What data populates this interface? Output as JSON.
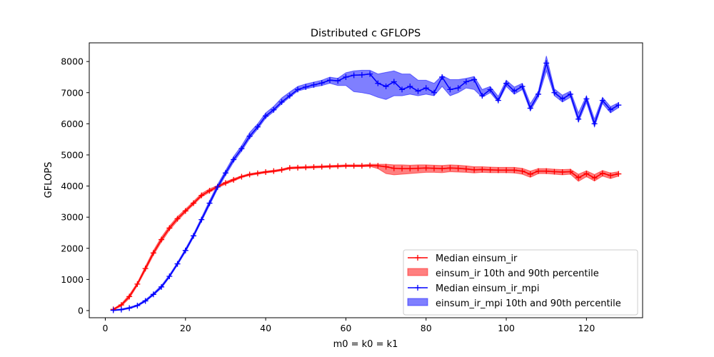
{
  "chart_data": {
    "type": "line",
    "title": "Distributed c GFLOPS",
    "xlabel": "m0 = k0 = k1",
    "ylabel": "GFLOPS",
    "xlim": [
      -4,
      134
    ],
    "ylim": [
      -230,
      8600
    ],
    "xticks": [
      0,
      20,
      40,
      60,
      80,
      100,
      120
    ],
    "yticks": [
      0,
      1000,
      2000,
      3000,
      4000,
      5000,
      6000,
      7000,
      8000
    ],
    "grid": false,
    "legend_position": "lower right",
    "x": [
      2,
      4,
      6,
      8,
      10,
      12,
      14,
      16,
      18,
      20,
      22,
      24,
      26,
      28,
      30,
      32,
      34,
      36,
      38,
      40,
      42,
      44,
      46,
      48,
      50,
      52,
      54,
      56,
      58,
      60,
      62,
      64,
      66,
      68,
      70,
      72,
      74,
      76,
      78,
      80,
      82,
      84,
      86,
      88,
      90,
      92,
      94,
      96,
      98,
      100,
      102,
      104,
      106,
      108,
      110,
      112,
      114,
      116,
      118,
      120,
      122,
      124,
      126,
      128
    ],
    "series": [
      {
        "name": "Median einsum_ir",
        "band_name": "einsum_ir 10th and 90th percentile",
        "color": "#ff0000",
        "band_color": "#ff0000",
        "values": [
          40,
          180,
          450,
          850,
          1350,
          1850,
          2280,
          2650,
          2950,
          3200,
          3450,
          3700,
          3850,
          3980,
          4100,
          4200,
          4300,
          4370,
          4410,
          4450,
          4480,
          4520,
          4580,
          4590,
          4600,
          4610,
          4620,
          4630,
          4640,
          4650,
          4650,
          4650,
          4660,
          4650,
          4620,
          4570,
          4560,
          4560,
          4570,
          4580,
          4570,
          4560,
          4580,
          4570,
          4550,
          4520,
          4530,
          4520,
          4510,
          4510,
          4510,
          4480,
          4380,
          4480,
          4480,
          4460,
          4450,
          4460,
          4270,
          4400,
          4260,
          4410,
          4340,
          4390
        ],
        "p10": [
          20,
          140,
          390,
          800,
          1280,
          1780,
          2200,
          2580,
          2880,
          3150,
          3400,
          3650,
          3800,
          3940,
          4060,
          4160,
          4270,
          4340,
          4380,
          4420,
          4450,
          4490,
          4550,
          4560,
          4570,
          4580,
          4590,
          4600,
          4610,
          4620,
          4620,
          4620,
          4630,
          4560,
          4400,
          4360,
          4380,
          4400,
          4420,
          4440,
          4440,
          4430,
          4460,
          4450,
          4440,
          4420,
          4440,
          4430,
          4430,
          4430,
          4420,
          4380,
          4280,
          4400,
          4400,
          4380,
          4360,
          4380,
          4150,
          4300,
          4160,
          4320,
          4240,
          4320
        ],
        "p90": [
          60,
          220,
          510,
          900,
          1420,
          1930,
          2360,
          2720,
          3020,
          3260,
          3510,
          3760,
          3910,
          4020,
          4140,
          4240,
          4330,
          4400,
          4440,
          4480,
          4510,
          4550,
          4610,
          4620,
          4630,
          4640,
          4650,
          4660,
          4670,
          4680,
          4680,
          4680,
          4700,
          4700,
          4700,
          4680,
          4680,
          4670,
          4680,
          4680,
          4670,
          4660,
          4680,
          4670,
          4650,
          4620,
          4620,
          4610,
          4600,
          4600,
          4600,
          4570,
          4480,
          4560,
          4560,
          4540,
          4530,
          4540,
          4380,
          4490,
          4370,
          4500,
          4420,
          4460
        ]
      },
      {
        "name": "Median einsum_ir_mpi",
        "band_name": "einsum_ir_mpi 10th and 90th percentile",
        "color": "#0000ff",
        "band_color": "#0000ff",
        "values": [
          10,
          30,
          80,
          160,
          310,
          520,
          760,
          1100,
          1500,
          1930,
          2400,
          2920,
          3450,
          3970,
          4420,
          4850,
          5200,
          5600,
          5900,
          6250,
          6450,
          6700,
          6900,
          7100,
          7180,
          7250,
          7310,
          7400,
          7380,
          7500,
          7560,
          7570,
          7600,
          7300,
          7200,
          7350,
          7100,
          7200,
          7050,
          7150,
          7000,
          7500,
          7100,
          7150,
          7350,
          7420,
          6900,
          7100,
          6750,
          7300,
          7050,
          7200,
          6500,
          6950,
          7950,
          7000,
          6800,
          6950,
          6150,
          6800,
          6000,
          6750,
          6450,
          6600
        ],
        "p10": [
          0,
          15,
          60,
          140,
          280,
          490,
          720,
          1060,
          1460,
          1880,
          2350,
          2860,
          3380,
          3900,
          4340,
          4770,
          5120,
          5520,
          5830,
          6180,
          6390,
          6640,
          6850,
          7050,
          7120,
          7180,
          7230,
          7300,
          7230,
          7230,
          7030,
          7000,
          6950,
          6850,
          6780,
          6900,
          6900,
          6950,
          6900,
          6950,
          6900,
          7200,
          6900,
          7000,
          7150,
          7100,
          6850,
          7000,
          6700,
          7200,
          6950,
          7100,
          6420,
          6850,
          7700,
          6900,
          6700,
          6850,
          6050,
          6680,
          5900,
          6650,
          6350,
          6520
        ],
        "p90": [
          30,
          55,
          110,
          190,
          350,
          560,
          810,
          1150,
          1550,
          1990,
          2460,
          2990,
          3530,
          4050,
          4500,
          4950,
          5300,
          5720,
          6000,
          6350,
          6560,
          6830,
          7020,
          7200,
          7280,
          7340,
          7400,
          7500,
          7460,
          7640,
          7700,
          7720,
          7720,
          7600,
          7650,
          7700,
          7600,
          7600,
          7400,
          7400,
          7300,
          7550,
          7420,
          7420,
          7460,
          7520,
          7100,
          7200,
          6880,
          7400,
          7180,
          7300,
          6650,
          7050,
          8180,
          7120,
          6920,
          7050,
          6350,
          6900,
          6150,
          6850,
          6550,
          6680
        ]
      }
    ]
  }
}
